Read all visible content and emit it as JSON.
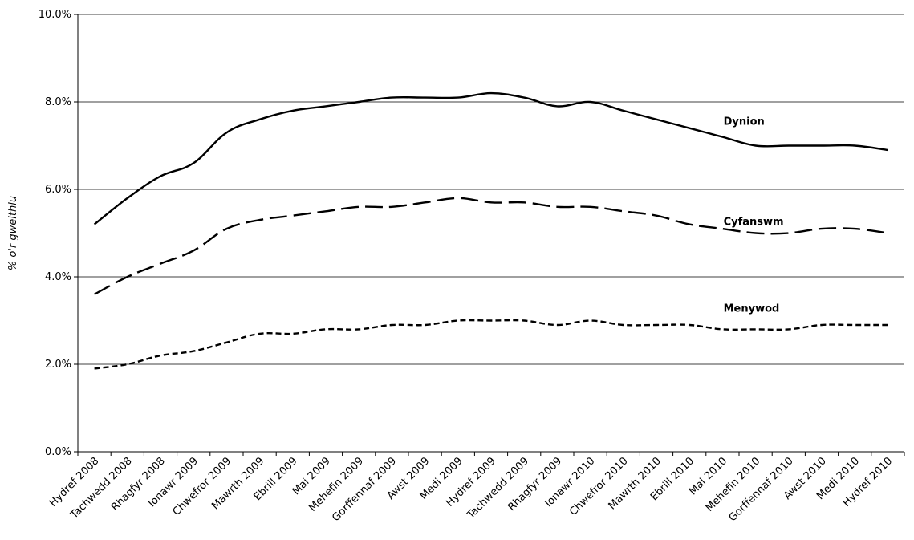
{
  "chart_data": {
    "type": "line",
    "title": "",
    "xlabel": "",
    "ylabel": "% o'r gweithlu",
    "ylim": [
      0,
      10
    ],
    "yticks": [
      "0.0%",
      "2.0%",
      "4.0%",
      "6.0%",
      "8.0%",
      "10.0%"
    ],
    "grid": true,
    "categories": [
      "Hydref 2008",
      "Tachwedd 2008",
      "Rhagfyr 2008",
      "Ionawr 2009",
      "Chwefror 2009",
      "Mawrth 2009",
      "Ebrill 2009",
      "Mai 2009",
      "Mehefin 2009",
      "Gorffennaf 2009",
      "Awst 2009",
      "Medi 2009",
      "Hydref 2009",
      "Tachwedd 2009",
      "Rhagfyr 2009",
      "Ionawr 2010",
      "Chwefror 2010",
      "Mawrth 2010",
      "Ebrill 2010",
      "Mai 2010",
      "Mehefin 2010",
      "Gorffennaf 2010",
      "Awst 2010",
      "Medi 2010",
      "Hydref 2010"
    ],
    "series": [
      {
        "name": "Dynion",
        "style": "solid",
        "color": "#000000",
        "values": [
          5.2,
          5.8,
          6.3,
          6.6,
          7.3,
          7.6,
          7.8,
          7.9,
          8.0,
          8.1,
          8.1,
          8.1,
          8.2,
          8.1,
          7.9,
          8.0,
          7.8,
          7.6,
          7.4,
          7.2,
          7.0,
          7.0,
          7.0,
          7.0,
          6.9
        ]
      },
      {
        "name": "Cyfanswm",
        "style": "dashed",
        "color": "#000000",
        "values": [
          3.6,
          4.0,
          4.3,
          4.6,
          5.1,
          5.3,
          5.4,
          5.5,
          5.6,
          5.6,
          5.7,
          5.8,
          5.7,
          5.7,
          5.6,
          5.6,
          5.5,
          5.4,
          5.2,
          5.1,
          5.0,
          5.0,
          5.1,
          5.1,
          5.0
        ]
      },
      {
        "name": "Menywod",
        "style": "short-dashed",
        "color": "#000000",
        "values": [
          1.9,
          2.0,
          2.2,
          2.3,
          2.5,
          2.7,
          2.7,
          2.8,
          2.8,
          2.9,
          2.9,
          3.0,
          3.0,
          3.0,
          2.9,
          3.0,
          2.9,
          2.9,
          2.9,
          2.8,
          2.8,
          2.8,
          2.9,
          2.9,
          2.9
        ]
      }
    ]
  }
}
